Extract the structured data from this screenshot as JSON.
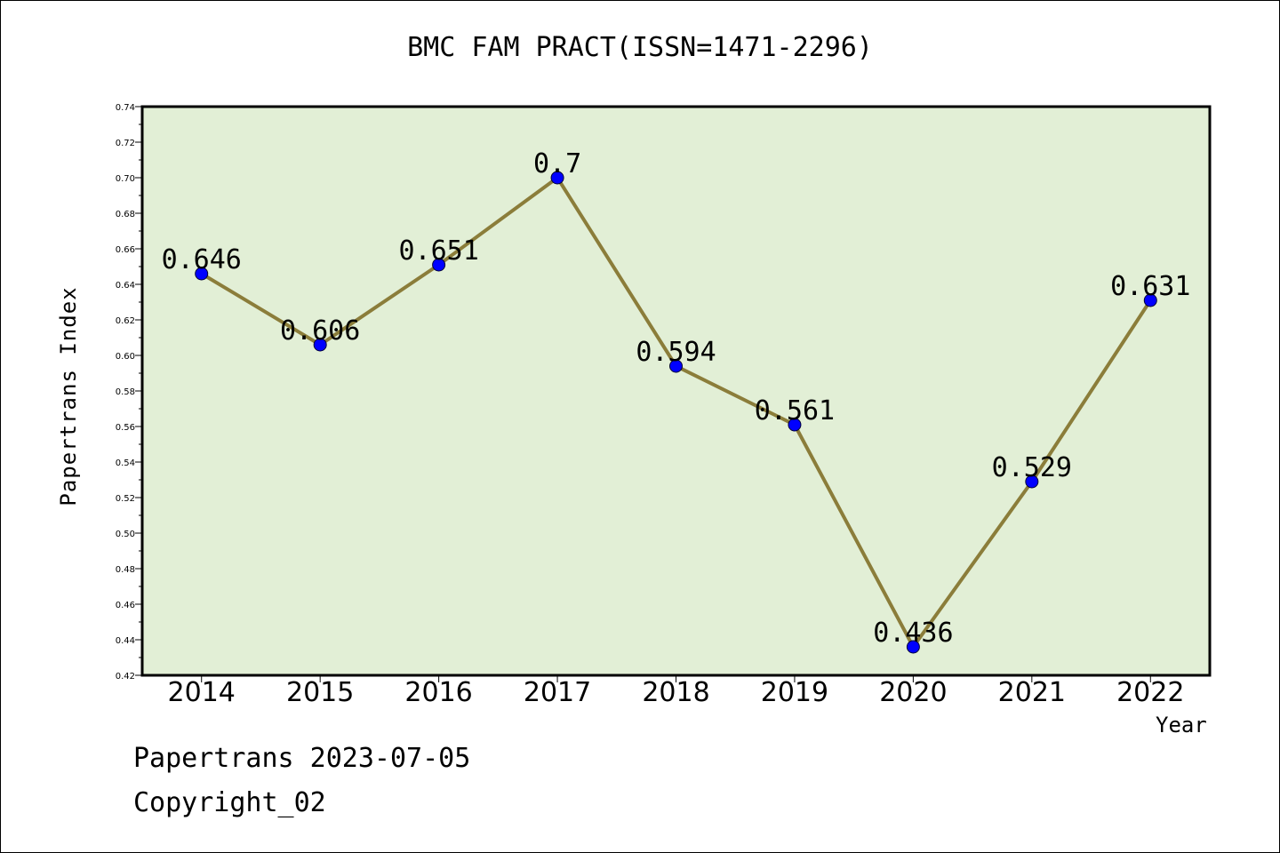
{
  "chart_data": {
    "type": "line",
    "title": "BMC FAM PRACT(ISSN=1471-2296)",
    "xlabel": "Year",
    "ylabel": "Papertrans Index",
    "categories": [
      "2014",
      "2015",
      "2016",
      "2017",
      "2018",
      "2019",
      "2020",
      "2021",
      "2022"
    ],
    "series": [
      {
        "values": [
          0.646,
          0.606,
          0.651,
          0.7,
          0.594,
          0.561,
          0.436,
          0.529,
          0.631
        ]
      }
    ],
    "data_labels": [
      "0.646",
      "0.606",
      "0.651",
      "0.7",
      "0.594",
      "0.561",
      "0.436",
      "0.529",
      "0.631"
    ],
    "ylim": [
      0.42,
      0.74
    ],
    "yticks": [
      "0.42",
      "0.44",
      "0.46",
      "0.48",
      "0.50",
      "0.52",
      "0.54",
      "0.56",
      "0.58",
      "0.60",
      "0.62",
      "0.64",
      "0.66",
      "0.68",
      "0.70",
      "0.72",
      "0.74"
    ],
    "grid": false,
    "colors": {
      "plot_background": "#e2efd6",
      "line": "#8b7d3a",
      "marker": "#0000ff"
    }
  },
  "footer": {
    "line1": "Papertrans 2023-07-05",
    "line2": "Copyright_02"
  }
}
